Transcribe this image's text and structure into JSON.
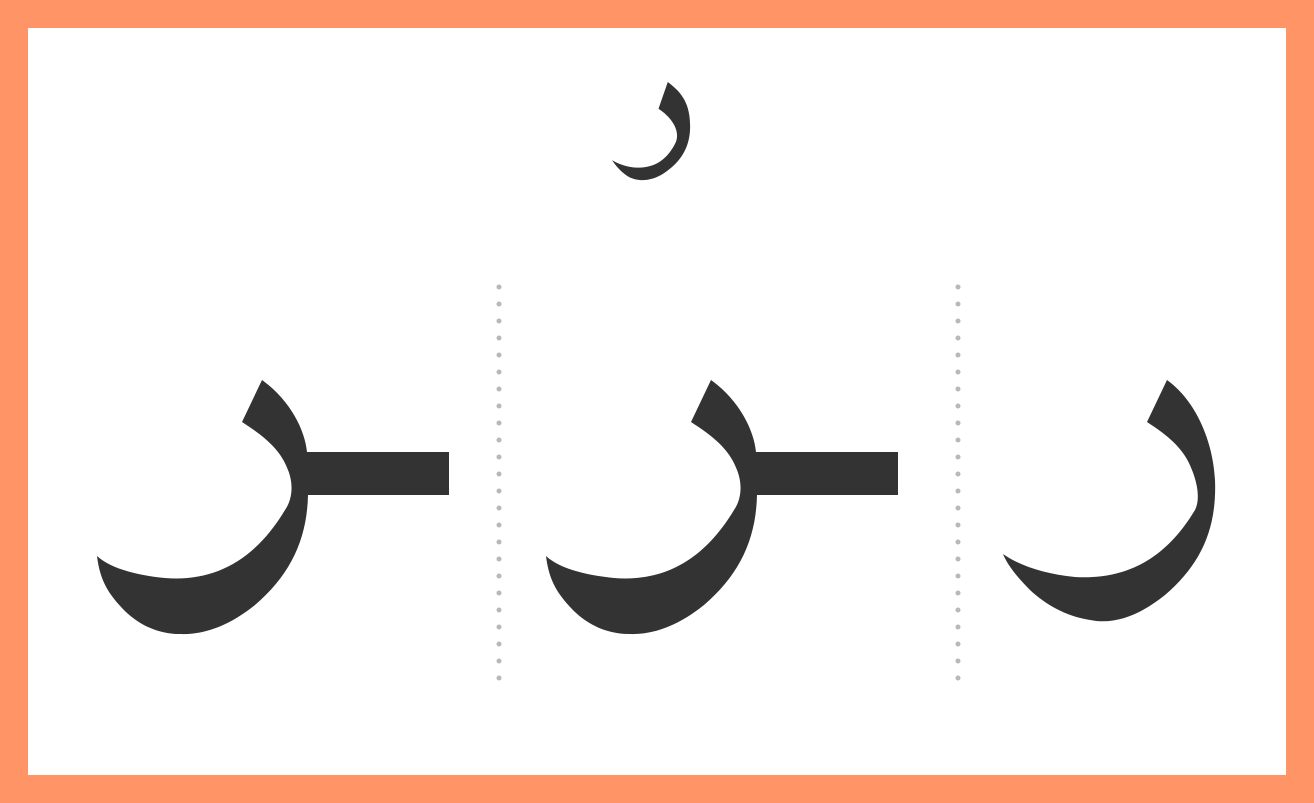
{
  "letter": {
    "isolated": "ر",
    "forms": [
      {
        "position": "final",
        "glyph": "ـر"
      },
      {
        "position": "medial",
        "glyph": "ـر"
      },
      {
        "position": "initial",
        "glyph": "ر"
      }
    ]
  },
  "colors": {
    "border": "#ff9466",
    "glyph": "#333333",
    "divider": "#b8b8b8",
    "background": "#ffffff"
  }
}
